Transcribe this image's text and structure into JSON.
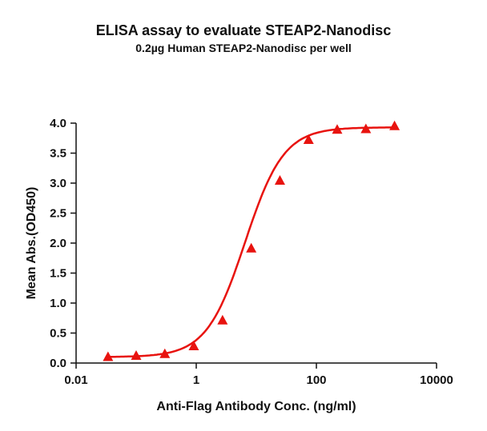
{
  "title": "ELISA assay to evaluate STEAP2-Nanodisc",
  "subtitle": "0.2µg Human STEAP2-Nanodisc per well",
  "colors": {
    "series": "#e8130f",
    "axis": "#111111"
  },
  "chart_data": {
    "type": "scatter",
    "title": "ELISA assay to evaluate STEAP2-Nanodisc",
    "subtitle": "0.2µg Human STEAP2-Nanodisc per well",
    "xlabel": "Anti-Flag Antibody Conc. (ng/ml)",
    "ylabel": "Mean Abs.(OD450)",
    "xscale": "log",
    "xlim": [
      0.01,
      10000
    ],
    "ylim": [
      0.0,
      4.0
    ],
    "xticks": [
      "0.01",
      "1",
      "100",
      "10000"
    ],
    "yticks": [
      "0.0",
      "0.5",
      "1.0",
      "1.5",
      "2.0",
      "2.5",
      "3.0",
      "3.5",
      "4.0"
    ],
    "grid": false,
    "legend": null,
    "series": [
      {
        "name": "STEAP2-Nanodisc",
        "marker": "triangle",
        "fit": "4PL sigmoid",
        "x": [
          0.034,
          0.1,
          0.3,
          0.91,
          2.74,
          8.23,
          24.7,
          74.1,
          222,
          667,
          2000
        ],
        "values": [
          0.1,
          0.12,
          0.15,
          0.28,
          0.71,
          1.91,
          3.04,
          3.72,
          3.89,
          3.9,
          3.95
        ]
      }
    ]
  }
}
